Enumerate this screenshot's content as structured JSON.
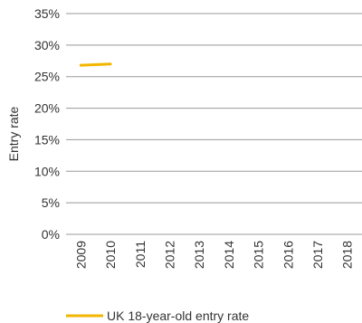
{
  "chart_data": {
    "type": "line",
    "title": "",
    "xlabel": "",
    "ylabel": "Entry rate",
    "x": [
      "2009",
      "2010",
      "2011",
      "2012",
      "2013",
      "2014",
      "2015",
      "2016",
      "2017",
      "2018"
    ],
    "ylim": [
      0,
      35
    ],
    "yticks": [
      "0%",
      "5%",
      "10%",
      "15%",
      "20%",
      "25%",
      "30%",
      "35%"
    ],
    "series": [
      {
        "name": "UK 18-year-old entry rate",
        "values": [
          26.8,
          27.0,
          null,
          null,
          null,
          null,
          null,
          null,
          null,
          null
        ]
      }
    ],
    "grid": true,
    "legend_position": "bottom",
    "colors": {
      "series": "#F2B600",
      "grid": "#999999",
      "text": "#333333"
    }
  }
}
